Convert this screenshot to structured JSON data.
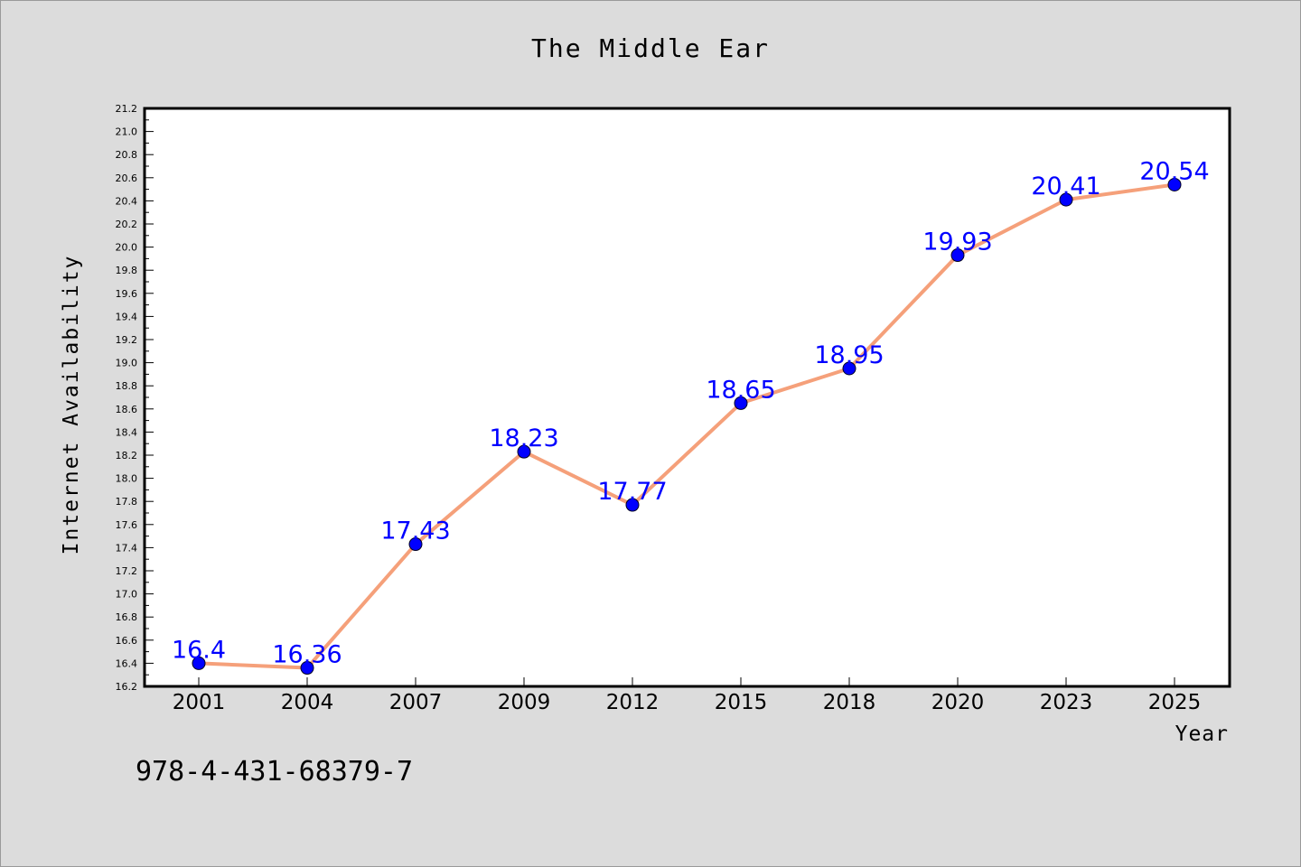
{
  "chart_data": {
    "type": "line",
    "title": "The Middle Ear",
    "xlabel": "Year",
    "ylabel": "Internet Availability",
    "categories": [
      "2001",
      "2004",
      "2007",
      "2009",
      "2012",
      "2015",
      "2018",
      "2020",
      "2023",
      "2025"
    ],
    "series": [
      {
        "values": [
          16.4,
          16.36,
          17.43,
          18.23,
          17.77,
          18.65,
          18.95,
          19.93,
          20.41,
          20.54
        ],
        "labels": [
          "16.4",
          "16.36",
          "17.43",
          "18.23",
          "17.77",
          "18.65",
          "18.95",
          "19.93",
          "20.41",
          "20.54"
        ]
      }
    ],
    "ylim": [
      16.2,
      21.2
    ],
    "yticks": [
      "16.2",
      "16.4",
      "16.6",
      "16.8",
      "17.0",
      "17.2",
      "17.4",
      "17.6",
      "17.8",
      "18.0",
      "18.2",
      "18.4",
      "18.6",
      "18.8",
      "19.0",
      "19.2",
      "19.4",
      "19.6",
      "19.8",
      "20.0",
      "20.2",
      "20.4",
      "20.6",
      "20.8",
      "21.0",
      "21.2"
    ],
    "grid": false,
    "colors": {
      "line": "#f5a07a",
      "marker": "#0000ff",
      "data_label": "#0000ff",
      "plot_bg": "#ffffff",
      "figure_bg": "#dcdcdc"
    }
  },
  "footer_code": "978-4-431-68379-7"
}
